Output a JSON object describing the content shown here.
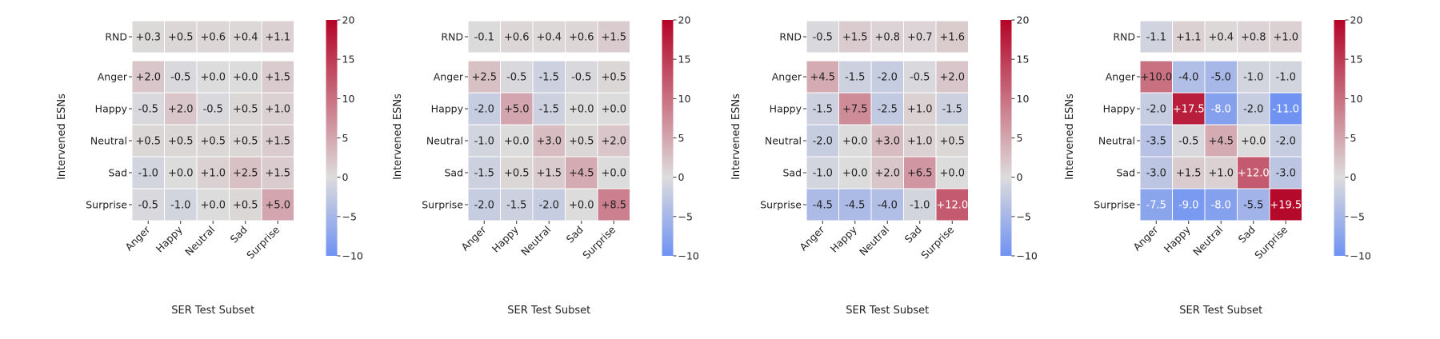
{
  "chart_data": [
    {
      "type": "heatmap",
      "xlabel": "SER Test Subset",
      "ylabel": "Intervened ESNs",
      "x_categories": [
        "Anger",
        "Happy",
        "Neutral",
        "Sad",
        "Surprise"
      ],
      "rnd_row": {
        "label": "RND",
        "values": [
          0.3,
          0.5,
          0.6,
          0.4,
          1.1
        ]
      },
      "rows": [
        {
          "label": "Anger",
          "values": [
            2.0,
            -0.5,
            0.0,
            0.0,
            1.5
          ]
        },
        {
          "label": "Happy",
          "values": [
            -0.5,
            2.0,
            -0.5,
            0.5,
            1.0
          ]
        },
        {
          "label": "Neutral",
          "values": [
            0.5,
            0.5,
            0.5,
            0.5,
            1.5
          ]
        },
        {
          "label": "Sad",
          "values": [
            -1.0,
            0.0,
            1.0,
            2.5,
            1.5
          ]
        },
        {
          "label": "Surprise",
          "values": [
            -0.5,
            -1.0,
            0.0,
            0.5,
            5.0
          ]
        }
      ],
      "colorbar": {
        "vmin": -10,
        "vmax": 20,
        "ticks": [
          20,
          15,
          10,
          5,
          0,
          -5,
          -10
        ]
      }
    },
    {
      "type": "heatmap",
      "xlabel": "SER Test Subset",
      "ylabel": "Intervened ESNs",
      "x_categories": [
        "Anger",
        "Happy",
        "Neutral",
        "Sad",
        "Surprise"
      ],
      "rnd_row": {
        "label": "RND",
        "values": [
          -0.1,
          0.6,
          0.4,
          0.6,
          1.5
        ]
      },
      "rows": [
        {
          "label": "Anger",
          "values": [
            2.5,
            -0.5,
            -1.5,
            -0.5,
            0.5
          ]
        },
        {
          "label": "Happy",
          "values": [
            -2.0,
            5.0,
            -1.5,
            0.0,
            0.0
          ]
        },
        {
          "label": "Neutral",
          "values": [
            -1.0,
            0.0,
            3.0,
            0.5,
            2.0
          ]
        },
        {
          "label": "Sad",
          "values": [
            -1.5,
            0.5,
            1.5,
            4.5,
            0.0
          ]
        },
        {
          "label": "Surprise",
          "values": [
            -2.0,
            -1.5,
            -2.0,
            0.0,
            8.5
          ]
        }
      ],
      "colorbar": {
        "vmin": -10,
        "vmax": 20,
        "ticks": [
          20,
          15,
          10,
          5,
          0,
          -5,
          -10
        ]
      }
    },
    {
      "type": "heatmap",
      "xlabel": "SER Test Subset",
      "ylabel": "Intervened ESNs",
      "x_categories": [
        "Anger",
        "Happy",
        "Neutral",
        "Sad",
        "Surprise"
      ],
      "rnd_row": {
        "label": "RND",
        "values": [
          -0.5,
          1.5,
          0.8,
          0.7,
          1.6
        ]
      },
      "rows": [
        {
          "label": "Anger",
          "values": [
            4.5,
            -1.5,
            -2.0,
            -0.5,
            2.0
          ]
        },
        {
          "label": "Happy",
          "values": [
            -1.5,
            7.5,
            -2.5,
            1.0,
            -1.5
          ]
        },
        {
          "label": "Neutral",
          "values": [
            -2.0,
            0.0,
            3.0,
            1.0,
            0.5
          ]
        },
        {
          "label": "Sad",
          "values": [
            -1.0,
            0.0,
            2.0,
            6.5,
            0.0
          ]
        },
        {
          "label": "Surprise",
          "values": [
            -4.5,
            -4.5,
            -4.0,
            -1.0,
            12.0
          ]
        }
      ],
      "colorbar": {
        "vmin": -10,
        "vmax": 20,
        "ticks": [
          20,
          15,
          10,
          5,
          0,
          -5,
          -10
        ]
      }
    },
    {
      "type": "heatmap",
      "xlabel": "SER Test Subset",
      "ylabel": "Intervened ESNs",
      "x_categories": [
        "Anger",
        "Happy",
        "Neutral",
        "Sad",
        "Surprise"
      ],
      "rnd_row": {
        "label": "RND",
        "values": [
          -1.1,
          1.1,
          0.4,
          0.8,
          1.0
        ]
      },
      "rows": [
        {
          "label": "Anger",
          "values": [
            10.0,
            -4.0,
            -5.0,
            -1.0,
            -1.0
          ]
        },
        {
          "label": "Happy",
          "values": [
            -2.0,
            17.5,
            -8.0,
            -2.0,
            -11.0
          ]
        },
        {
          "label": "Neutral",
          "values": [
            -3.5,
            -0.5,
            4.5,
            0.0,
            -2.0
          ]
        },
        {
          "label": "Sad",
          "values": [
            -3.0,
            1.5,
            1.0,
            12.0,
            -3.0
          ]
        },
        {
          "label": "Surprise",
          "values": [
            -7.5,
            -9.0,
            -8.0,
            -5.5,
            19.5
          ]
        }
      ],
      "colorbar": {
        "vmin": -10,
        "vmax": 20,
        "ticks": [
          20,
          15,
          10,
          5,
          0,
          -5,
          -10
        ]
      }
    }
  ],
  "colormap": {
    "negative": "#6f92f3",
    "center": "#dddcdc",
    "positive": "#b40426"
  }
}
